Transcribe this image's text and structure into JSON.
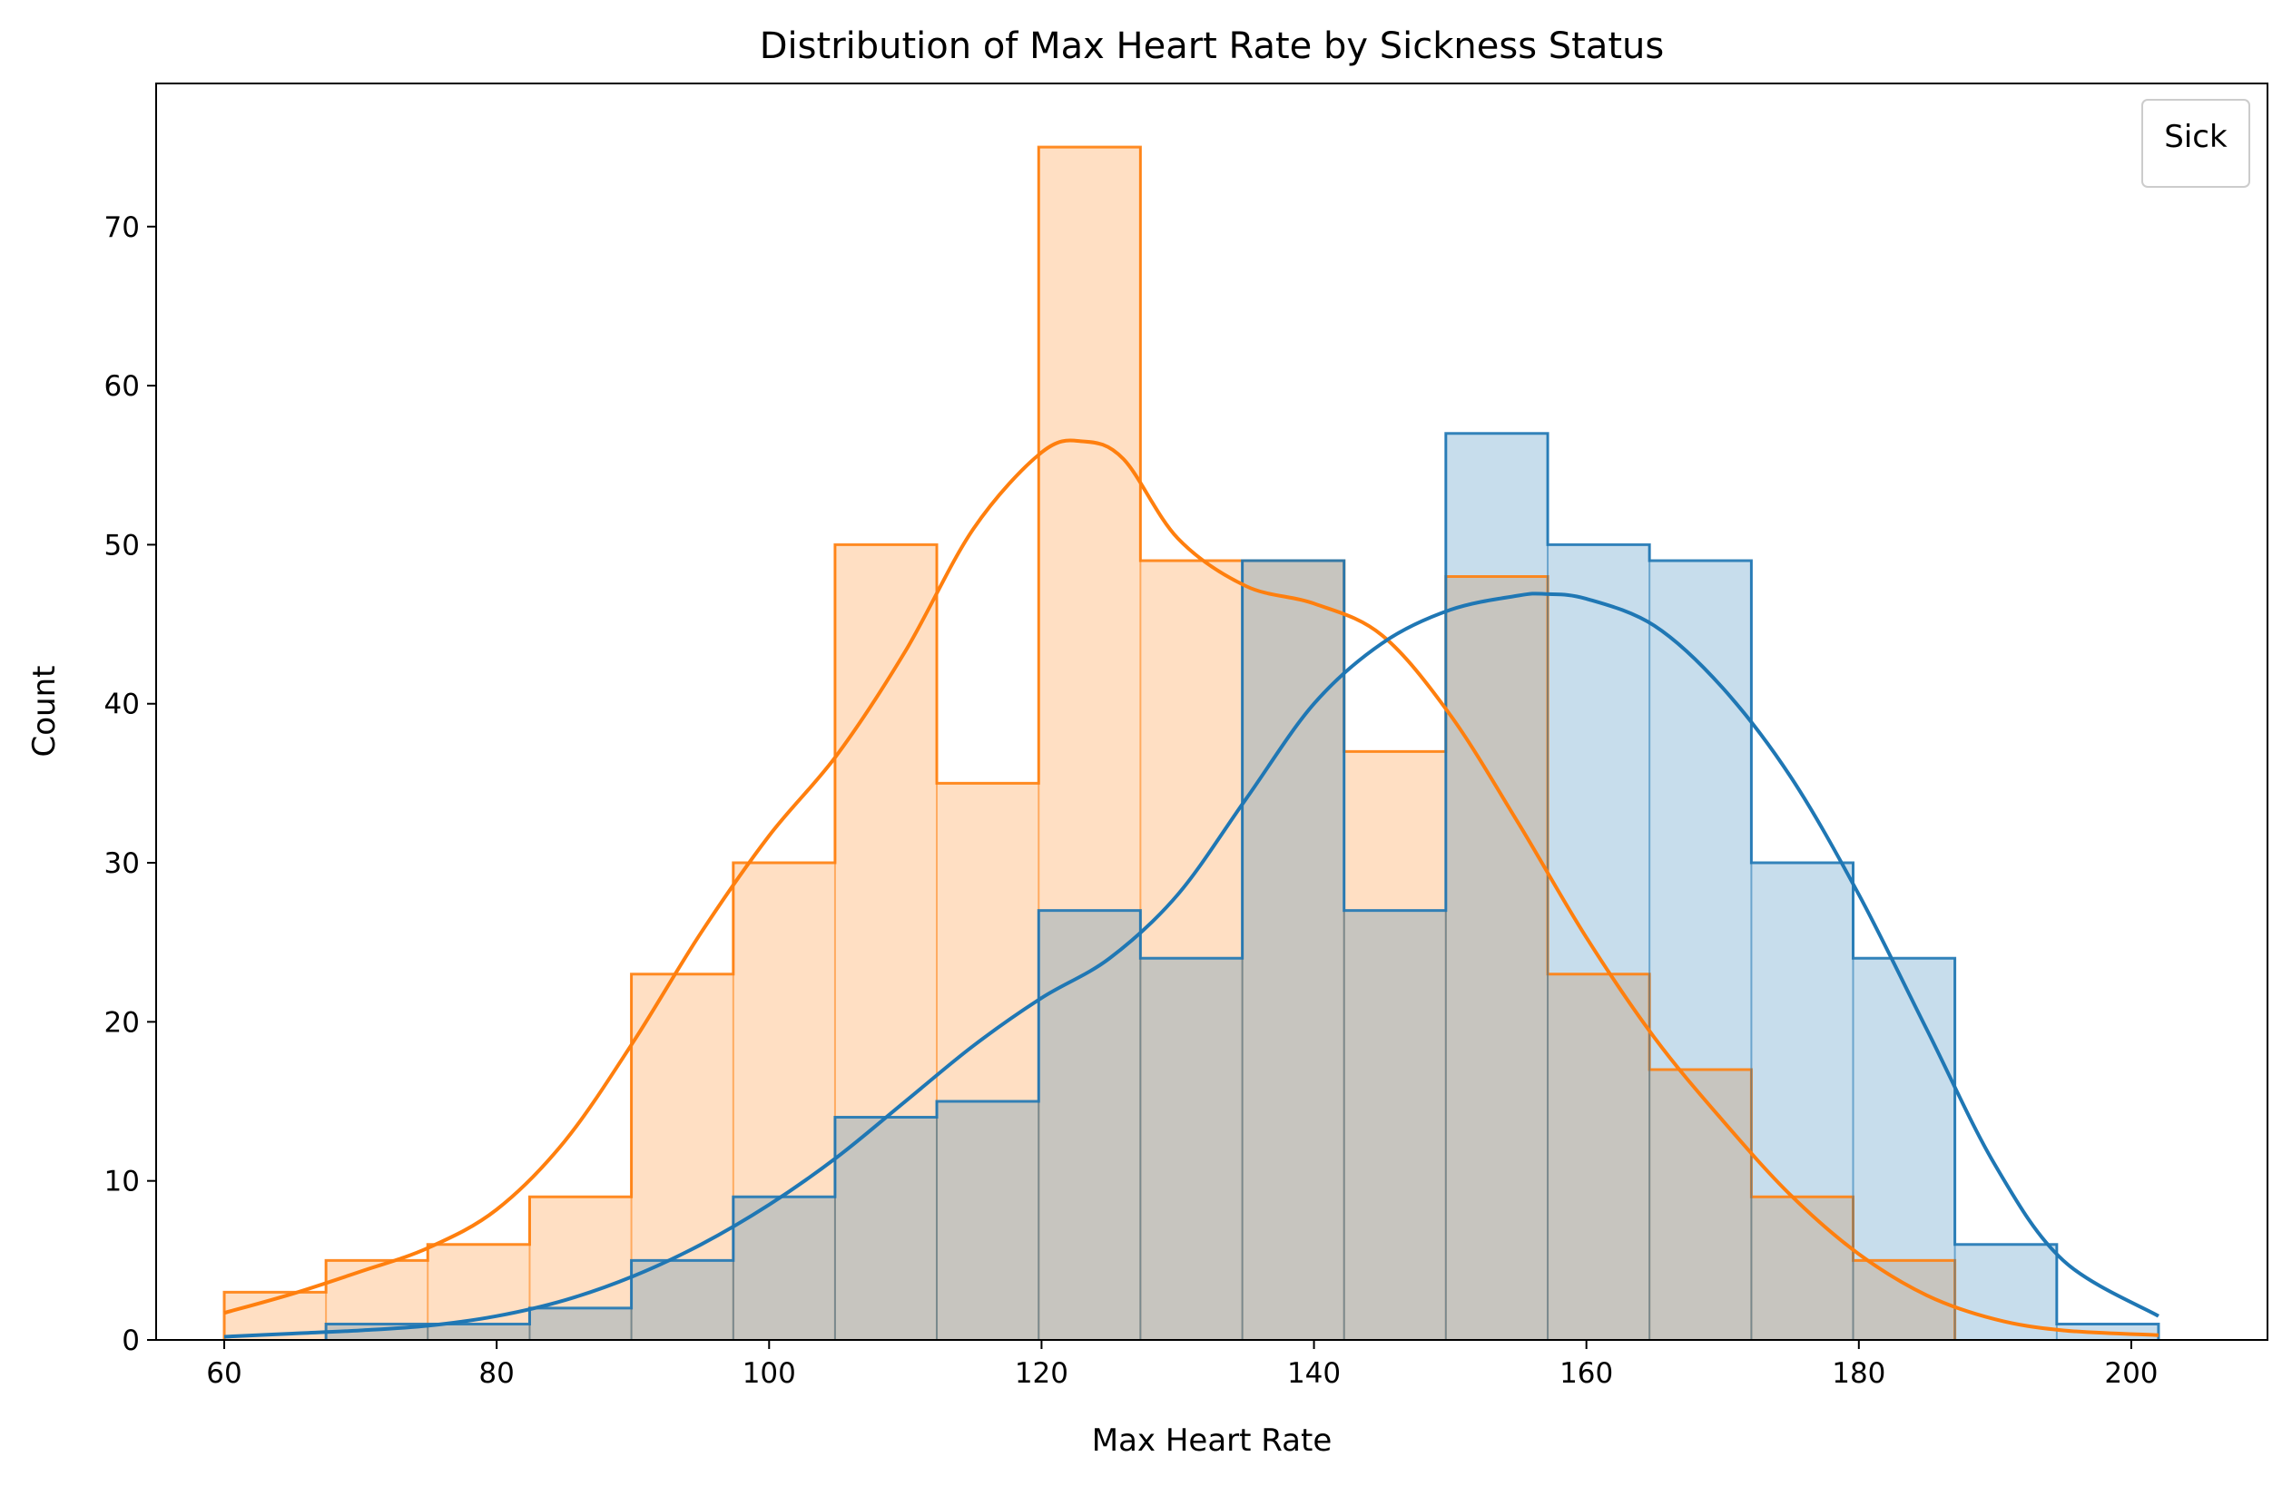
{
  "chart_data": {
    "type": "histogram",
    "title": "Distribution of Max Heart Rate by Sickness Status",
    "xlabel": "Max Heart Rate",
    "ylabel": "Count",
    "xlim": [
      55.0,
      210.0
    ],
    "ylim": [
      0,
      79
    ],
    "xticks": [
      60,
      80,
      100,
      120,
      140,
      160,
      180,
      200
    ],
    "yticks": [
      0,
      10,
      20,
      30,
      40,
      50,
      60,
      70
    ],
    "grid": false,
    "legend": {
      "title": "Sick",
      "placement": "top-right",
      "entries": []
    },
    "bin_edges": [
      60.0,
      67.47,
      74.94,
      82.42,
      89.89,
      97.37,
      104.84,
      112.31,
      119.79,
      127.26,
      134.74,
      142.21,
      149.68,
      157.16,
      164.63,
      172.11,
      179.58,
      187.05,
      194.53,
      202.0
    ],
    "series": [
      {
        "color": "#ff7f0e",
        "fill": "#fdd9bc",
        "counts": [
          3,
          5,
          6,
          9,
          23,
          30,
          50,
          35,
          75,
          49,
          49,
          37,
          48,
          23,
          17,
          9,
          5,
          0,
          0
        ],
        "kde": {
          "x": [
            60,
            65,
            70,
            75,
            80,
            85,
            90,
            95,
            100,
            105,
            110,
            115,
            120,
            123,
            126,
            130,
            135,
            140,
            145,
            150,
            155,
            160,
            165,
            170,
            175,
            180,
            185,
            190,
            195,
            202
          ],
          "y": [
            1.7,
            2.9,
            4.3,
            5.8,
            8.2,
            12.5,
            18.7,
            25.6,
            31.7,
            36.8,
            43.3,
            51.0,
            55.8,
            56.5,
            55.4,
            50.4,
            47.4,
            46.3,
            44.3,
            39.3,
            32.5,
            25.3,
            19.0,
            13.8,
            9.1,
            5.4,
            2.8,
            1.3,
            0.6,
            0.3
          ]
        }
      },
      {
        "color": "#1f77b4",
        "fill": "#c5dbed",
        "counts": [
          0,
          1,
          1,
          2,
          5,
          9,
          14,
          15,
          27,
          24,
          49,
          27,
          57,
          50,
          49,
          30,
          24,
          6,
          1
        ],
        "kde": {
          "x": [
            60,
            65,
            70,
            75,
            80,
            85,
            90,
            95,
            100,
            105,
            110,
            115,
            120,
            125,
            130,
            135,
            140,
            145,
            150,
            155,
            157,
            160,
            165,
            170,
            175,
            180,
            185,
            190,
            195,
            202
          ],
          "y": [
            0.2,
            0.4,
            0.6,
            0.9,
            1.5,
            2.5,
            4.0,
            6.0,
            8.5,
            11.5,
            15.0,
            18.5,
            21.5,
            24.0,
            28.0,
            34.0,
            40.0,
            43.8,
            45.9,
            46.8,
            46.9,
            46.6,
            44.9,
            41.0,
            35.4,
            28.0,
            19.5,
            11.0,
            5.0,
            1.5
          ]
        }
      }
    ]
  }
}
